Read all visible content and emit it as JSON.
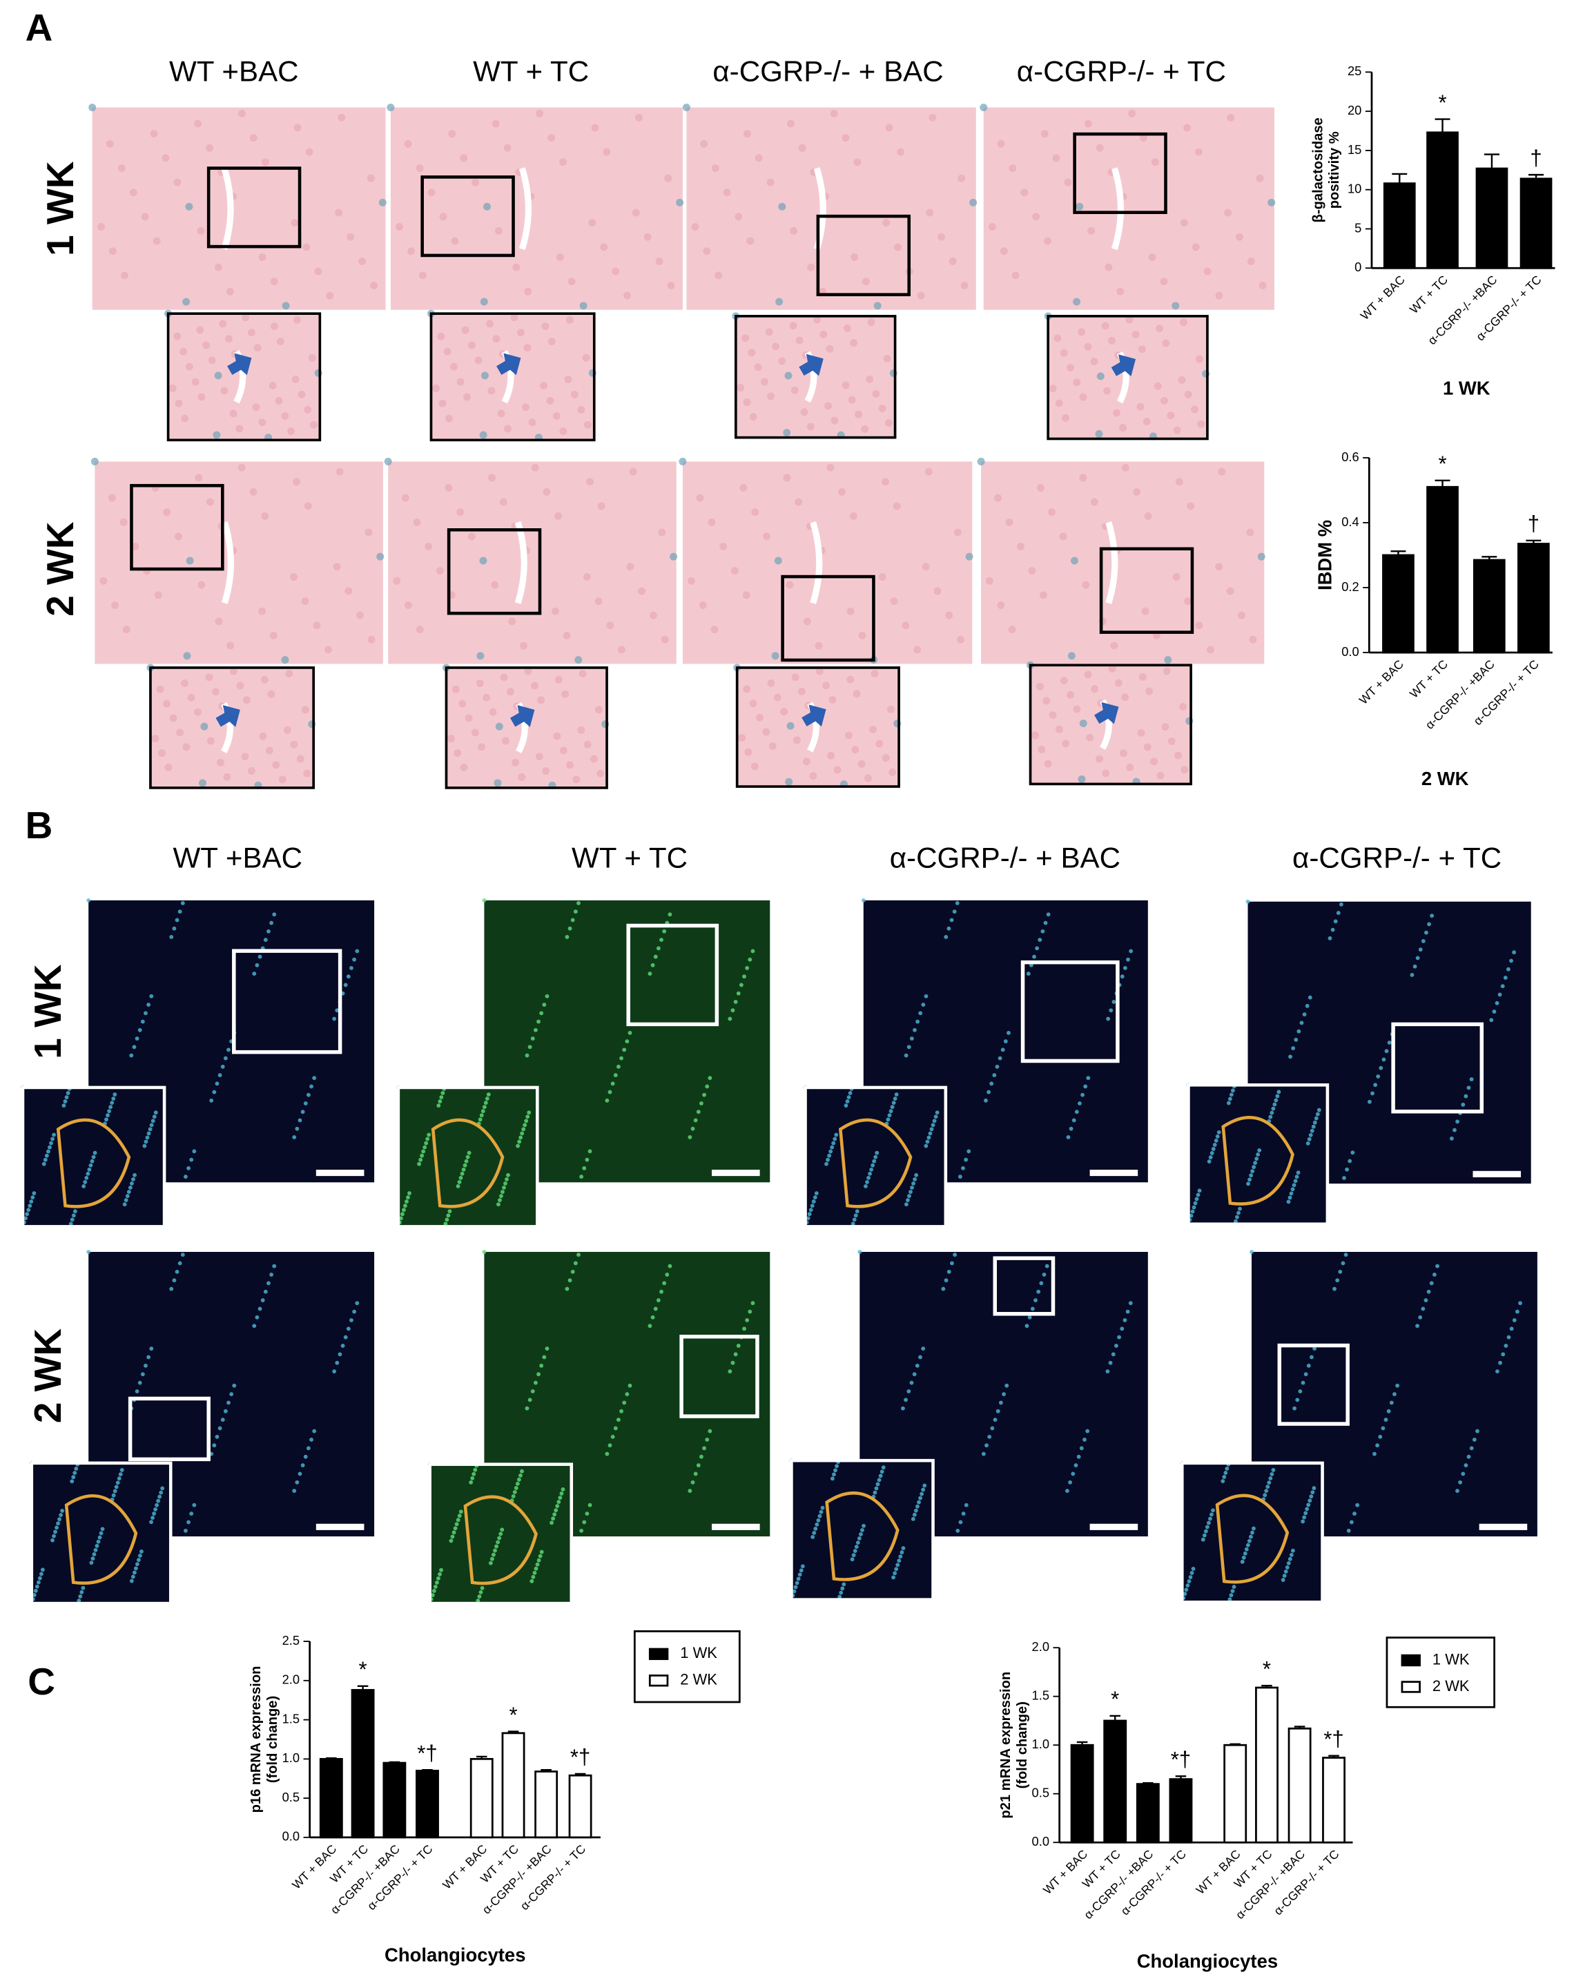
{
  "panel_a": {
    "label": "A",
    "columns": [
      "WT +BAC",
      "WT + TC",
      "α-CGRP-/- + BAC",
      "α-CGRP-/- + TC"
    ],
    "rows": [
      "1 WK",
      "2 WK"
    ]
  },
  "panel_b": {
    "label": "B",
    "columns": [
      "WT +BAC",
      "WT + TC",
      "α-CGRP-/- + BAC",
      "α-CGRP-/- + TC"
    ],
    "rows": [
      "1 WK",
      "2 WK"
    ]
  },
  "panel_c": {
    "label": "C"
  },
  "chart_data": [
    {
      "type": "bar",
      "ylabel": [
        "β-galactosidase",
        "positivity %"
      ],
      "xlabel": "1 WK",
      "categories": [
        "WT + BAC",
        "WT + TC",
        "α-CGRP-/- +BAC",
        "α-CGRP-/- + TC"
      ],
      "values": [
        10.8,
        17.3,
        12.7,
        11.4
      ],
      "errors": [
        1.2,
        1.7,
        1.8,
        0.5
      ],
      "color": "#000000",
      "ylim": [
        0,
        25
      ],
      "yticks": [
        0,
        5,
        10,
        15,
        20,
        25
      ],
      "annotations": [
        {
          "text": "*",
          "index": 1
        },
        {
          "text": "†",
          "index": 3
        }
      ]
    },
    {
      "type": "bar",
      "ylabel": [
        "IBDM %"
      ],
      "xlabel": "2 WK",
      "categories": [
        "WT + BAC",
        "WT + TC",
        "α-CGRP-/- +BAC",
        "α-CGRP-/- + TC"
      ],
      "values": [
        0.3,
        0.51,
        0.285,
        0.335
      ],
      "errors": [
        0.012,
        0.02,
        0.01,
        0.01
      ],
      "color": "#000000",
      "ylim": [
        0,
        0.6
      ],
      "yticks": [
        {
          "value": 0,
          "label": "0.0"
        },
        {
          "value": 0.2,
          "label": "0.2"
        },
        {
          "value": 0.4,
          "label": "0.4"
        },
        {
          "value": 0.6,
          "label": "0.6"
        }
      ],
      "annotations": [
        {
          "text": "*",
          "index": 1
        },
        {
          "text": "†",
          "index": 3
        }
      ]
    },
    {
      "type": "grouped_bar",
      "ylabel": [
        "p16 mRNA expression",
        "(fold change)"
      ],
      "xlabel": "Cholangiocytes",
      "categories": [
        "WT + BAC",
        "WT + TC",
        "α-CGRP-/- +BAC",
        "α-CGRP-/- + TC"
      ],
      "series": [
        {
          "name": "1 WK",
          "color": "#000000",
          "values": [
            1.0,
            1.88,
            0.95,
            0.85
          ],
          "errors": [
            0.01,
            0.05,
            0.01,
            0.01
          ]
        },
        {
          "name": "2 WK",
          "color": "#ffffff",
          "values": [
            1.0,
            1.33,
            0.84,
            0.79
          ],
          "errors": [
            0.03,
            0.02,
            0.02,
            0.02
          ]
        }
      ],
      "ylim": [
        0,
        2.5
      ],
      "yticks": [
        {
          "value": 0,
          "label": "0.0"
        },
        {
          "value": 0.5,
          "label": "0.5"
        },
        {
          "value": 1,
          "label": "1.0"
        },
        {
          "value": 1.5,
          "label": "1.5"
        },
        {
          "value": 2,
          "label": "2.0"
        },
        {
          "value": 2.5,
          "label": "2.5"
        }
      ],
      "legend": "upper right",
      "annotations": [
        {
          "text": "*",
          "series": 0,
          "index": 1
        },
        {
          "text": "*†",
          "series": 0,
          "index": 3
        },
        {
          "text": "*",
          "series": 1,
          "index": 1
        },
        {
          "text": "*†",
          "series": 1,
          "index": 3
        }
      ]
    },
    {
      "type": "grouped_bar",
      "ylabel": [
        "p21 mRNA expression",
        "(fold change)"
      ],
      "xlabel": "Cholangiocytes",
      "categories": [
        "WT + BAC",
        "WT + TC",
        "α-CGRP-/- +BAC",
        "α-CGRP-/- + TC"
      ],
      "series": [
        {
          "name": "1 WK",
          "color": "#000000",
          "values": [
            1.0,
            1.25,
            0.6,
            0.65
          ],
          "errors": [
            0.03,
            0.05,
            0.01,
            0.03
          ]
        },
        {
          "name": "2 WK",
          "color": "#ffffff",
          "values": [
            1.0,
            1.59,
            1.17,
            0.87
          ],
          "errors": [
            0.01,
            0.02,
            0.02,
            0.02
          ]
        }
      ],
      "ylim": [
        0,
        2.0
      ],
      "yticks": [
        {
          "value": 0,
          "label": "0.0"
        },
        {
          "value": 0.5,
          "label": "0.5"
        },
        {
          "value": 1,
          "label": "1.0"
        },
        {
          "value": 1.5,
          "label": "1.5"
        },
        {
          "value": 2,
          "label": "2.0"
        }
      ],
      "legend": "upper right",
      "annotations": [
        {
          "text": "*",
          "series": 0,
          "index": 1
        },
        {
          "text": "*†",
          "series": 0,
          "index": 3
        },
        {
          "text": "*",
          "series": 1,
          "index": 1
        },
        {
          "text": "*†",
          "series": 1,
          "index": 3
        }
      ]
    }
  ]
}
